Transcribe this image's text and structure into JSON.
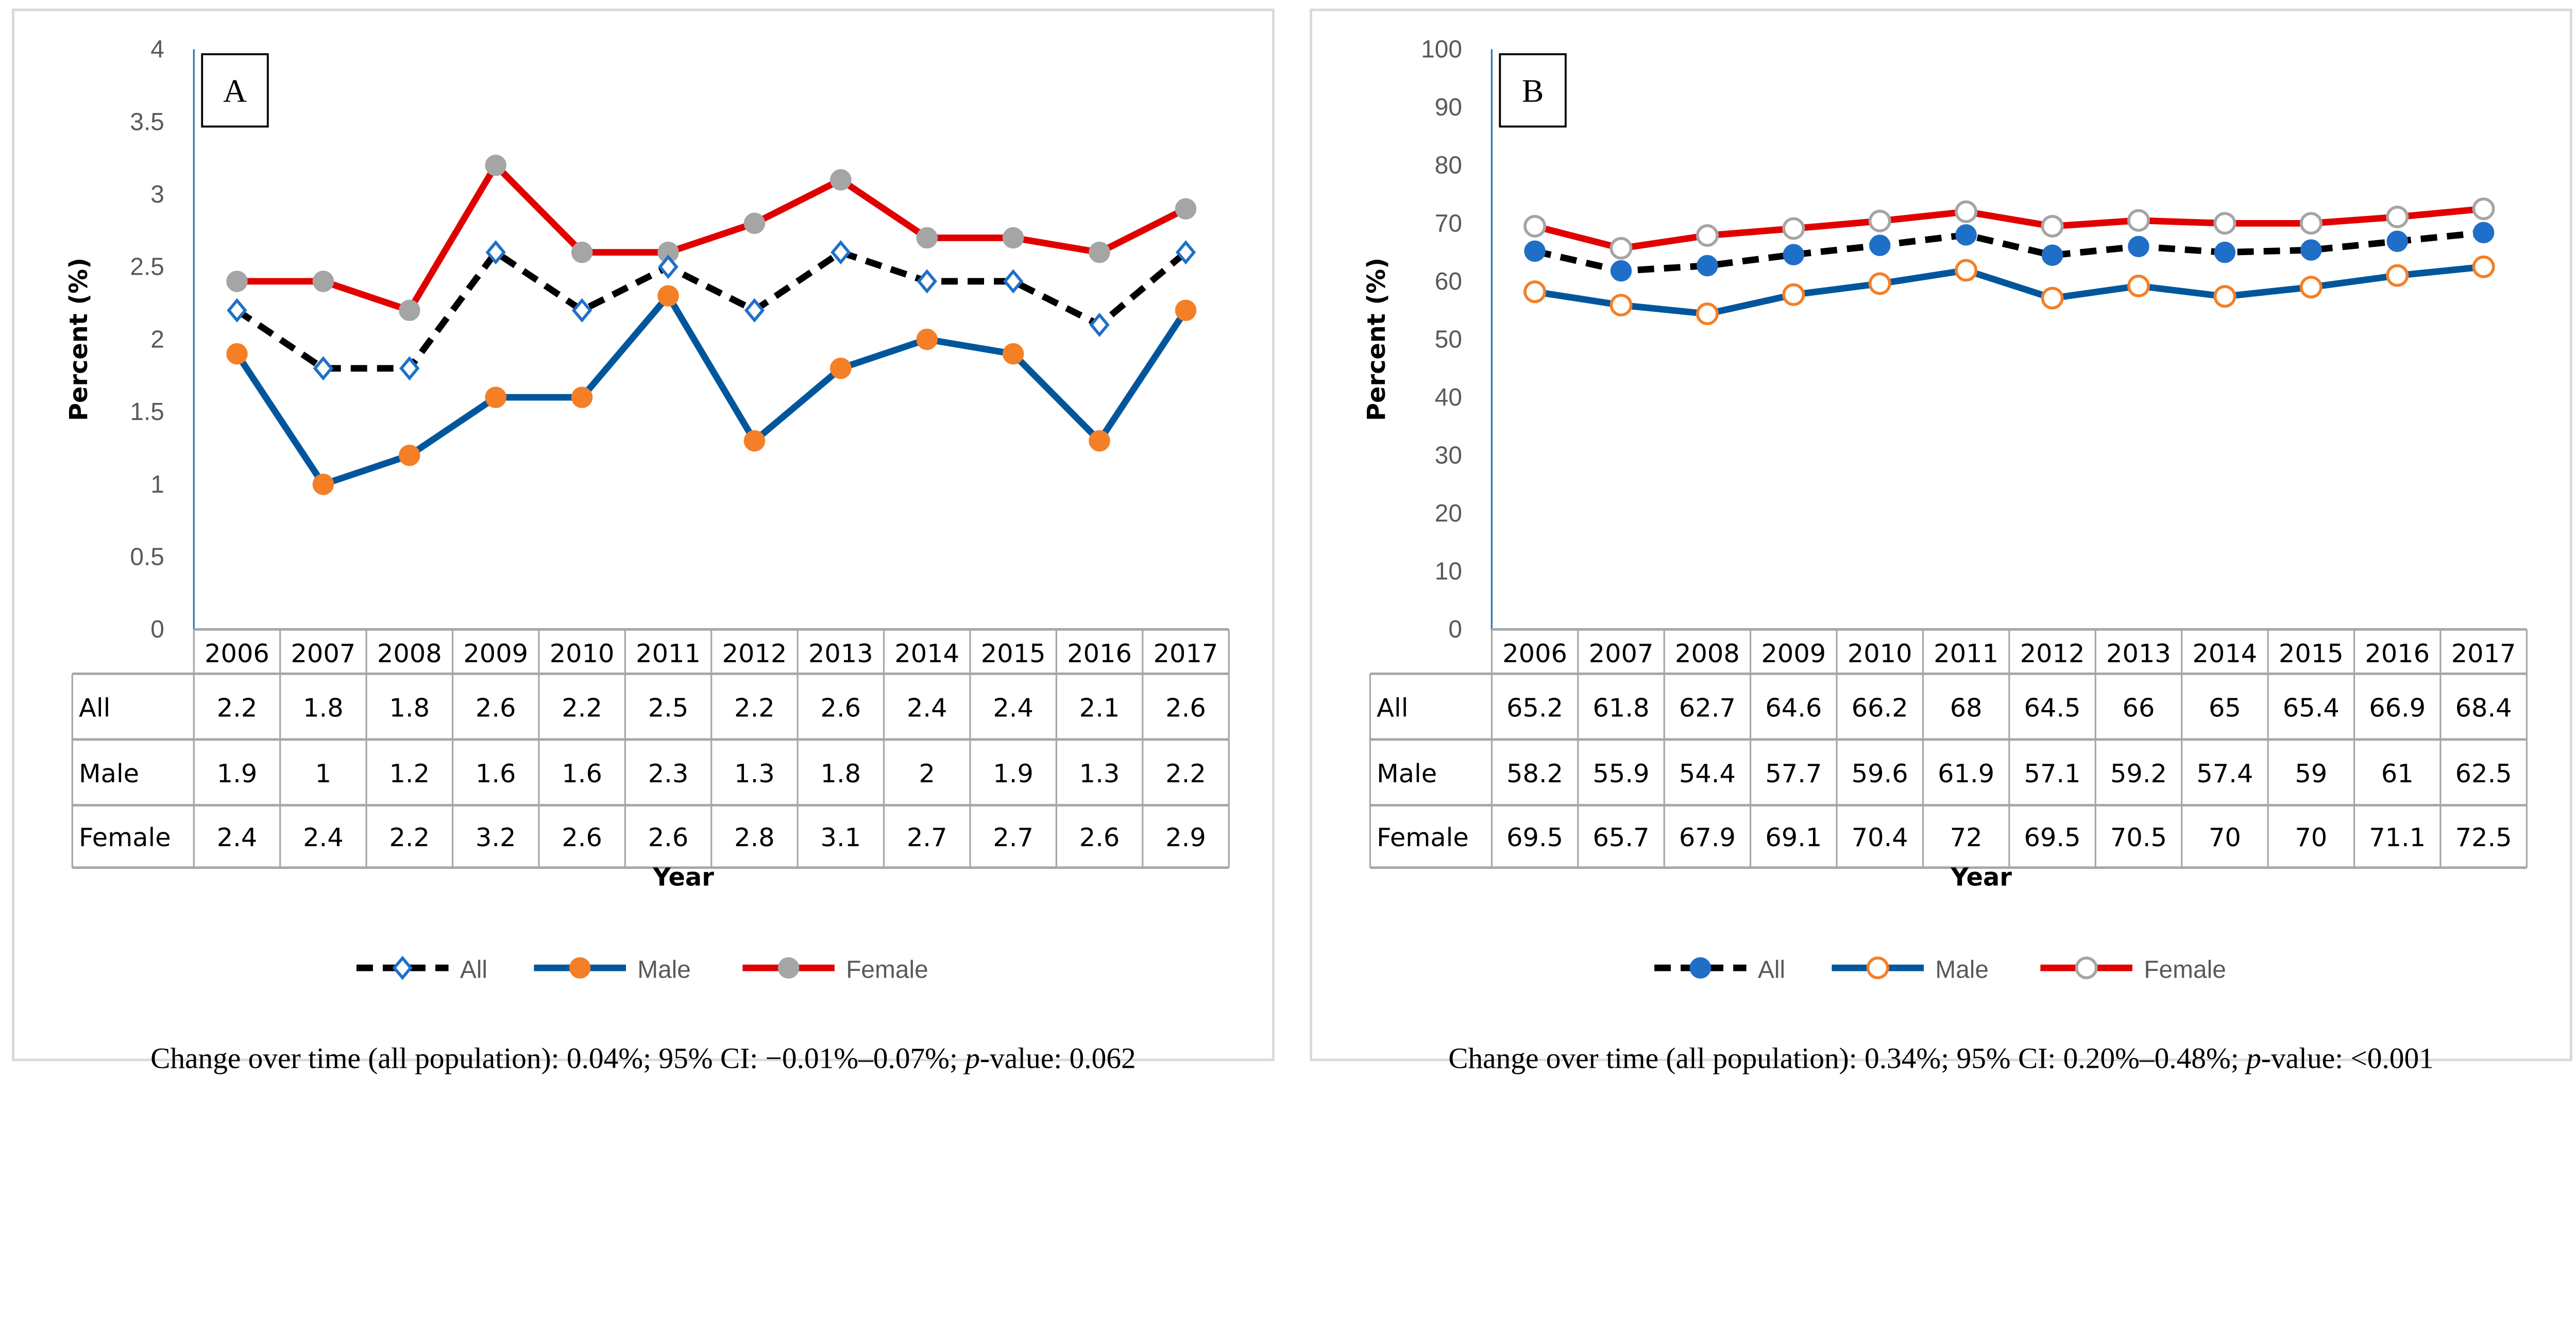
{
  "chart_data": [
    {
      "type": "line",
      "panel_label": "A",
      "xlabel": "Year",
      "ylabel": "Percent (%)",
      "ylim": [
        0,
        4
      ],
      "yticks": [
        "0",
        "0.5",
        "1",
        "1.5",
        "2",
        "2.5",
        "3",
        "3.5",
        "4"
      ],
      "categories": [
        "2006",
        "2007",
        "2008",
        "2009",
        "2010",
        "2011",
        "2012",
        "2013",
        "2014",
        "2015",
        "2016",
        "2017"
      ],
      "series": [
        {
          "name": "All",
          "values": [
            2.2,
            1.8,
            1.8,
            2.6,
            2.2,
            2.5,
            2.2,
            2.6,
            2.4,
            2.4,
            2.1,
            2.6
          ],
          "line_color": "#000000",
          "dashed": true,
          "marker": "diamond-hollow",
          "marker_color": "#1f6fc9"
        },
        {
          "name": "Male",
          "values": [
            1.9,
            1,
            1.2,
            1.6,
            1.6,
            2.3,
            1.3,
            1.8,
            2,
            1.9,
            1.3,
            2.2
          ],
          "line_color": "#00569c",
          "dashed": false,
          "marker": "circle-filled",
          "marker_color": "#f47f27"
        },
        {
          "name": "Female",
          "values": [
            2.4,
            2.4,
            2.2,
            3.2,
            2.6,
            2.6,
            2.8,
            3.1,
            2.7,
            2.7,
            2.6,
            2.9
          ],
          "line_color": "#e00000",
          "dashed": false,
          "marker": "circle-filled",
          "marker_color": "#a5a5a5"
        }
      ],
      "table_rows": [
        {
          "label": "All",
          "cells": [
            "2.2",
            "1.8",
            "1.8",
            "2.6",
            "2.2",
            "2.5",
            "2.2",
            "2.6",
            "2.4",
            "2.4",
            "2.1",
            "2.6"
          ]
        },
        {
          "label": "Male",
          "cells": [
            "1.9",
            "1",
            "1.2",
            "1.6",
            "1.6",
            "2.3",
            "1.3",
            "1.8",
            "2",
            "1.9",
            "1.3",
            "2.2"
          ]
        },
        {
          "label": "Female",
          "cells": [
            "2.4",
            "2.4",
            "2.2",
            "3.2",
            "2.6",
            "2.6",
            "2.8",
            "3.1",
            "2.7",
            "2.7",
            "2.6",
            "2.9"
          ]
        }
      ],
      "legend_position": "bottom",
      "caption": {
        "pre": "Change over time (all population): 0.04%; 95% CI: −0.01%–0.07%; ",
        "italic": "p",
        "post": "-value: 0.062"
      }
    },
    {
      "type": "line",
      "panel_label": "B",
      "xlabel": "Year",
      "ylabel": "Percent (%)",
      "ylim": [
        0,
        100
      ],
      "yticks": [
        "0",
        "10",
        "20",
        "30",
        "40",
        "50",
        "60",
        "70",
        "80",
        "90",
        "100"
      ],
      "categories": [
        "2006",
        "2007",
        "2008",
        "2009",
        "2010",
        "2011",
        "2012",
        "2013",
        "2014",
        "2015",
        "2016",
        "2017"
      ],
      "series": [
        {
          "name": "All",
          "values": [
            65.2,
            61.8,
            62.7,
            64.6,
            66.2,
            68,
            64.5,
            66,
            65,
            65.4,
            66.9,
            68.4
          ],
          "line_color": "#000000",
          "dashed": true,
          "marker": "circle-filled",
          "marker_color": "#1f6fc9"
        },
        {
          "name": "Male",
          "values": [
            58.2,
            55.9,
            54.4,
            57.7,
            59.6,
            61.9,
            57.1,
            59.2,
            57.4,
            59,
            61,
            62.5
          ],
          "line_color": "#00569c",
          "dashed": false,
          "marker": "circle-hollow",
          "marker_color": "#f47f27"
        },
        {
          "name": "Female",
          "values": [
            69.5,
            65.7,
            67.9,
            69.1,
            70.4,
            72,
            69.5,
            70.5,
            70,
            70,
            71.1,
            72.5
          ],
          "line_color": "#e00000",
          "dashed": false,
          "marker": "circle-hollow",
          "marker_color": "#a5a5a5"
        }
      ],
      "table_rows": [
        {
          "label": "All",
          "cells": [
            "65.2",
            "61.8",
            "62.7",
            "64.6",
            "66.2",
            "68",
            "64.5",
            "66",
            "65",
            "65.4",
            "66.9",
            "68.4"
          ]
        },
        {
          "label": "Male",
          "cells": [
            "58.2",
            "55.9",
            "54.4",
            "57.7",
            "59.6",
            "61.9",
            "57.1",
            "59.2",
            "57.4",
            "59",
            "61",
            "62.5"
          ]
        },
        {
          "label": "Female",
          "cells": [
            "69.5",
            "65.7",
            "67.9",
            "69.1",
            "70.4",
            "72",
            "69.5",
            "70.5",
            "70",
            "70",
            "71.1",
            "72.5"
          ]
        }
      ],
      "legend_position": "bottom",
      "caption": {
        "pre": "Change over time (all population): 0.34%; 95% CI: 0.20%–0.48%; ",
        "italic": "p",
        "post": "-value: <0.001"
      }
    }
  ]
}
